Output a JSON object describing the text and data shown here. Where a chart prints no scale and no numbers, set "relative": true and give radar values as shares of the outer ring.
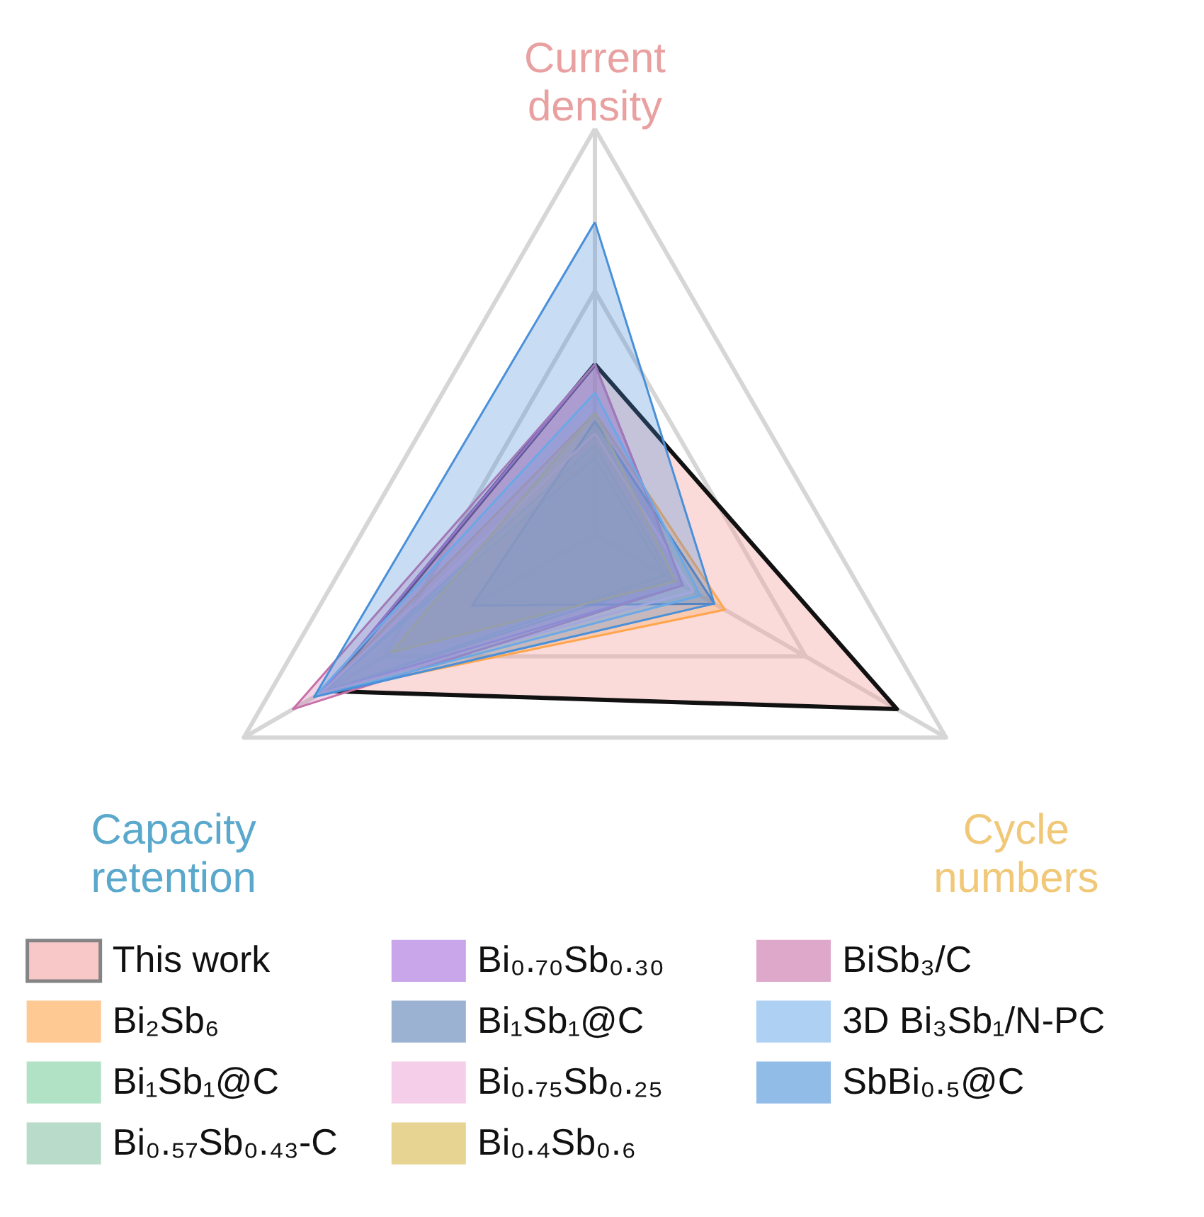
{
  "chart_data": {
    "type": "radar",
    "relative": true,
    "grid": true,
    "legend": "bottom",
    "categories": [
      "Current density",
      "Cycle numbers",
      "Capacity retention"
    ],
    "series": [
      {
        "name": "This work",
        "color": "#f4a3a3",
        "values": [
          0.42,
          0.86,
          0.77
        ]
      },
      {
        "name": "Bi₂Sb₆",
        "color": "#ffa64d",
        "values": [
          0.3,
          0.37,
          0.78
        ]
      },
      {
        "name": "Bi₁Sb₁@C",
        "color": "#7fcfa0",
        "values": [
          0.19,
          0.2,
          0.78
        ]
      },
      {
        "name": "Bi₀.₅₇Sb₀.₄₃-C",
        "color": "#8cc4a8",
        "values": [
          0.22,
          0.22,
          0.77
        ]
      },
      {
        "name": "Bi₀.₇₀Sb₀.₃₀",
        "color": "#a66bdc",
        "values": [
          0.42,
          0.25,
          0.78
        ]
      },
      {
        "name": "Bi₁Sb₁@C",
        "color": "#5b7fb5",
        "values": [
          0.28,
          0.34,
          0.35
        ]
      },
      {
        "name": "Bi₀.₇₅Sb₀.₂₅",
        "color": "#f0b0dc",
        "values": [
          0.25,
          0.28,
          0.78
        ]
      },
      {
        "name": "Bi₀.₄Sb₀.₆",
        "color": "#d8b84a",
        "values": [
          0.3,
          0.23,
          0.58
        ]
      },
      {
        "name": "BiSb₃/C",
        "color": "#c870a8",
        "values": [
          0.42,
          0.25,
          0.86
        ]
      },
      {
        "name": "3D Bi₃Sb₁/N-PC",
        "color": "#7ab4ec",
        "values": [
          0.35,
          0.3,
          0.8
        ]
      },
      {
        "name": "SbBi₀.₅@C",
        "color": "#4a90d9",
        "values": [
          0.77,
          0.34,
          0.8
        ]
      }
    ]
  }
}
